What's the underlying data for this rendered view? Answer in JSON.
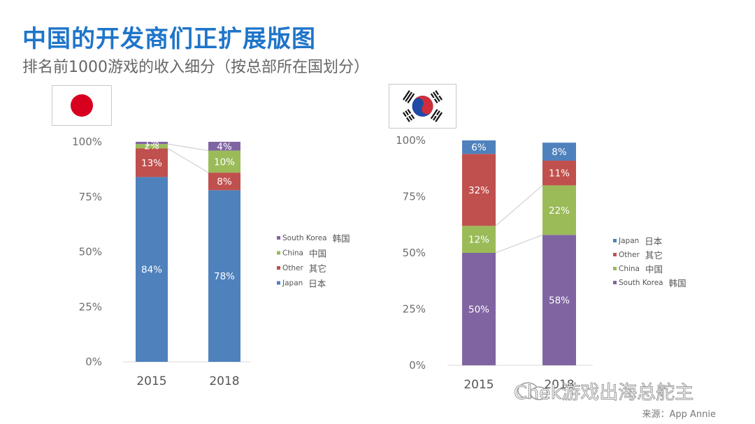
{
  "header": {
    "title": "中国的开发商们正扩展版图",
    "subtitle": "排名前1000游戏的收入细分（按总部所在国划分）"
  },
  "footer": {
    "source": "来源：App Annie",
    "watermark": "Chek游戏出海总舵主"
  },
  "colors": {
    "japan": "#4f81bd",
    "other": "#c0504d",
    "china": "#9bbb59",
    "south_korea": "#8064a2"
  },
  "chart_data": [
    {
      "type": "bar",
      "stacked": true,
      "flag": "japan-flag",
      "categories": [
        "2015",
        "2018"
      ],
      "yticks": [
        "0%",
        "25%",
        "50%",
        "75%",
        "100%"
      ],
      "ylim": [
        0,
        100
      ],
      "series": [
        {
          "key": "japan",
          "name": "Japan",
          "name_zh": "日本",
          "values": [
            84,
            78
          ],
          "labels": [
            "84%",
            "78%"
          ]
        },
        {
          "key": "other",
          "name": "Other",
          "name_zh": "其它",
          "values": [
            13,
            8
          ],
          "labels": [
            "13%",
            "8%"
          ]
        },
        {
          "key": "china",
          "name": "China",
          "name_zh": "中国",
          "values": [
            2,
            10
          ],
          "labels": [
            "2%",
            "10%"
          ]
        },
        {
          "key": "south_korea",
          "name": "South Korea",
          "name_zh": "韩国",
          "values": [
            1,
            4
          ],
          "labels": [
            "1%",
            "4%"
          ]
        }
      ],
      "legend_order": [
        "south_korea",
        "china",
        "other",
        "japan"
      ]
    },
    {
      "type": "bar",
      "stacked": true,
      "flag": "south-korea-flag",
      "categories": [
        "2015",
        "2018"
      ],
      "yticks": [
        "0%",
        "25%",
        "50%",
        "75%",
        "100%"
      ],
      "ylim": [
        0,
        100
      ],
      "series": [
        {
          "key": "south_korea",
          "name": "South Korea",
          "name_zh": "韩国",
          "values": [
            50,
            58
          ],
          "labels": [
            "50%",
            "58%"
          ]
        },
        {
          "key": "china",
          "name": "China",
          "name_zh": "中国",
          "values": [
            12,
            22
          ],
          "labels": [
            "12%",
            "22%"
          ]
        },
        {
          "key": "other",
          "name": "Other",
          "name_zh": "其它",
          "values": [
            32,
            11
          ],
          "labels": [
            "32%",
            "11%"
          ]
        },
        {
          "key": "japan",
          "name": "Japan",
          "name_zh": "日本",
          "values": [
            6,
            8
          ],
          "labels": [
            "6%",
            "8%"
          ]
        }
      ],
      "legend_order": [
        "japan",
        "other",
        "china",
        "south_korea"
      ]
    }
  ]
}
